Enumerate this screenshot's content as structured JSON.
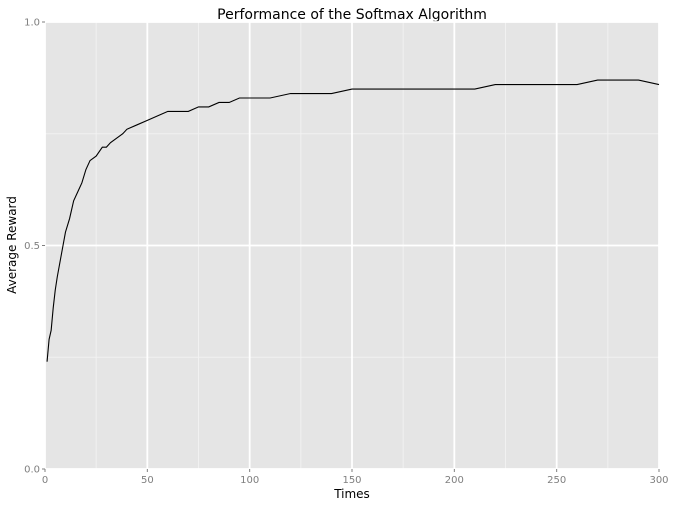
{
  "chart_data": {
    "type": "line",
    "title": "Performance of the Softmax Algorithm",
    "xlabel": "Times",
    "ylabel": "Average Reward",
    "xlim": [
      0,
      300
    ],
    "ylim": [
      0.0,
      1.0
    ],
    "x_ticks": [
      0,
      50,
      100,
      150,
      200,
      250,
      300
    ],
    "x_tick_labels": [
      "0",
      "50",
      "100",
      "150",
      "200",
      "250",
      "300"
    ],
    "y_ticks": [
      0.0,
      0.5,
      1.0
    ],
    "y_tick_labels": [
      "0.0",
      "0.5",
      "1.0"
    ],
    "grid": true,
    "legend": "none",
    "colors": {
      "panel": "#e5e5e5",
      "grid_major": "#ffffff",
      "grid_minor": "#f2f2f2",
      "line": "#000000",
      "tick_text": "#7f7f7f"
    },
    "series": [
      {
        "x": [
          1,
          2,
          3,
          4,
          5,
          6,
          8,
          10,
          12,
          14,
          16,
          18,
          20,
          22,
          25,
          28,
          30,
          32,
          35,
          38,
          40,
          45,
          50,
          55,
          60,
          65,
          70,
          75,
          80,
          85,
          90,
          95,
          100,
          110,
          120,
          130,
          140,
          150,
          160,
          170,
          180,
          190,
          200,
          210,
          220,
          230,
          240,
          250,
          260,
          270,
          280,
          290,
          300
        ],
        "y": [
          0.24,
          0.29,
          0.31,
          0.36,
          0.4,
          0.43,
          0.48,
          0.53,
          0.56,
          0.6,
          0.62,
          0.64,
          0.67,
          0.69,
          0.7,
          0.72,
          0.72,
          0.73,
          0.74,
          0.75,
          0.76,
          0.77,
          0.78,
          0.79,
          0.8,
          0.8,
          0.8,
          0.81,
          0.81,
          0.82,
          0.82,
          0.83,
          0.83,
          0.83,
          0.84,
          0.84,
          0.84,
          0.85,
          0.85,
          0.85,
          0.85,
          0.85,
          0.85,
          0.85,
          0.86,
          0.86,
          0.86,
          0.86,
          0.86,
          0.87,
          0.87,
          0.87,
          0.86
        ]
      }
    ]
  }
}
